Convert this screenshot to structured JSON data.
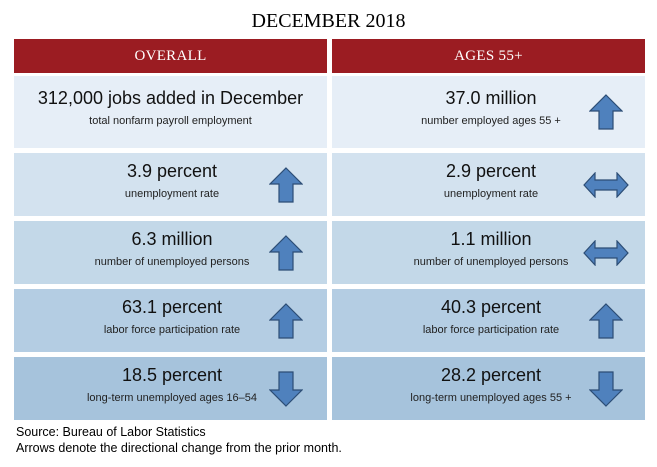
{
  "title": "DECEMBER 2018",
  "columns": {
    "overall": "OVERALL",
    "ages55": "AGES 55+"
  },
  "rows": [
    {
      "overall": {
        "value": "312,000 jobs added in December",
        "label": "total nonfarm payroll employment",
        "arrow": "none"
      },
      "ages55": {
        "value": "37.0 million",
        "label": "number employed ages 55 +",
        "arrow": "up"
      }
    },
    {
      "overall": {
        "value": "3.9 percent",
        "label": "unemployment rate",
        "arrow": "up"
      },
      "ages55": {
        "value": "2.9 percent",
        "label": "unemployment rate",
        "arrow": "left-right"
      }
    },
    {
      "overall": {
        "value": "6.3 million",
        "label": "number of unemployed persons",
        "arrow": "up"
      },
      "ages55": {
        "value": "1.1 million",
        "label": "number of unemployed persons",
        "arrow": "left-right"
      }
    },
    {
      "overall": {
        "value": "63.1 percent",
        "label": "labor force participation rate",
        "arrow": "up"
      },
      "ages55": {
        "value": "40.3 percent",
        "label": "labor force participation rate",
        "arrow": "up"
      }
    },
    {
      "overall": {
        "value": "18.5 percent",
        "label": "long-term unemployed ages 16–54",
        "arrow": "down"
      },
      "ages55": {
        "value": "28.2 percent",
        "label": "long-term unemployed ages 55 +",
        "arrow": "down"
      }
    }
  ],
  "footer": {
    "source": "Source: Bureau of Labor Statistics",
    "note": "Arrows denote the directional change from the prior month."
  },
  "colors": {
    "header": "#9b1c22",
    "row_fills": [
      "#e6eef7",
      "#d3e2ef",
      "#c3d8e8",
      "#b4cde3",
      "#a6c3dc"
    ],
    "arrow_fill": "#4f81bd",
    "arrow_stroke": "#2c4d75"
  }
}
